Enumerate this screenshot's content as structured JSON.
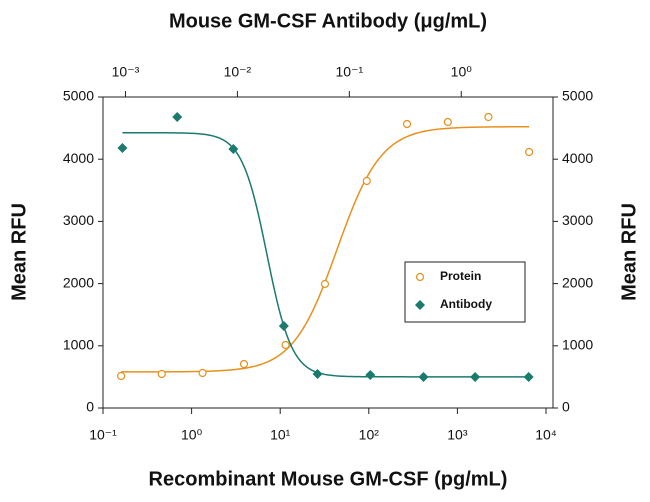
{
  "chart_data": {
    "type": "scatter",
    "title": "Mouse GM-CSF Antibody (μg/mL)",
    "xlabel": "Recombinant Mouse GM-CSF (pg/mL)",
    "ylabel": "Mean RFU",
    "y2label": "Mean RFU",
    "xscale": "log",
    "x2scale": "log",
    "xlim": [
      0.1,
      12000
    ],
    "xticks": [
      {
        "value": 0.1,
        "label": "10⁻¹"
      },
      {
        "value": 1,
        "label": "10⁰"
      },
      {
        "value": 10,
        "label": "10¹"
      },
      {
        "value": 100,
        "label": "10²"
      },
      {
        "value": 1000,
        "label": "10³"
      },
      {
        "value": 10000,
        "label": "10⁴"
      }
    ],
    "x2lim": [
      0.00063,
      6.6
    ],
    "x2ticks": [
      {
        "value": 0.001,
        "label": "10⁻³"
      },
      {
        "value": 0.01,
        "label": "10⁻²"
      },
      {
        "value": 0.1,
        "label": "10⁻¹"
      },
      {
        "value": 1,
        "label": "10⁰"
      }
    ],
    "ylim": [
      0,
      5000
    ],
    "yticks": [
      0,
      1000,
      2000,
      3000,
      4000,
      5000
    ],
    "y2lim": [
      0,
      5000
    ],
    "y2ticks": [
      0,
      1000,
      2000,
      3000,
      4000,
      5000
    ],
    "legend": "right",
    "series": [
      {
        "name": "Protein",
        "color": "#e8901c",
        "marker": "circle",
        "x": [
          0.16,
          0.46,
          1.33,
          3.9,
          11.5,
          32,
          95,
          270,
          780,
          2240,
          6450
        ],
        "values": [
          515,
          547,
          563,
          707,
          1013,
          1994,
          3650,
          4566,
          4598,
          4678,
          4116
        ]
      },
      {
        "name": "Antibody",
        "color": "#1a7a6e",
        "marker": "diamond",
        "axis": "x2",
        "x": [
          0.00094,
          0.0029,
          0.0092,
          0.026,
          0.052,
          0.154,
          0.46,
          1.33,
          4.0
        ],
        "values": [
          4180,
          4678,
          4164,
          1318,
          547,
          531,
          498,
          498,
          498
        ]
      }
    ]
  }
}
